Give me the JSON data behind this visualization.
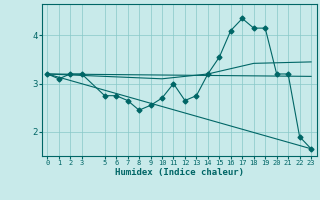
{
  "xlabel": "Humidex (Indice chaleur)",
  "background_color": "#c8eaea",
  "grid_color": "#88c8c8",
  "line_color": "#006666",
  "xlim": [
    -0.5,
    23.5
  ],
  "ylim": [
    1.5,
    4.65
  ],
  "yticks": [
    2,
    3,
    4
  ],
  "xticks": [
    0,
    1,
    2,
    3,
    5,
    6,
    7,
    8,
    9,
    10,
    11,
    12,
    13,
    14,
    15,
    16,
    17,
    18,
    19,
    20,
    21,
    22,
    23
  ],
  "line1_x": [
    0,
    1,
    2,
    3,
    5,
    6,
    7,
    8,
    9,
    10,
    11,
    12,
    13,
    14,
    15,
    16,
    17,
    18,
    19,
    20,
    21,
    22,
    23
  ],
  "line1_y": [
    3.2,
    3.1,
    3.2,
    3.2,
    2.75,
    2.75,
    2.65,
    2.45,
    2.55,
    2.7,
    3.0,
    2.65,
    2.75,
    3.2,
    3.55,
    4.1,
    4.35,
    4.15,
    4.15,
    3.2,
    3.2,
    1.9,
    1.65
  ],
  "line2_x": [
    0,
    23
  ],
  "line2_y": [
    3.2,
    3.15
  ],
  "line3_x": [
    0,
    23
  ],
  "line3_y": [
    3.2,
    1.65
  ],
  "line4_x": [
    0,
    10,
    14,
    18,
    23
  ],
  "line4_y": [
    3.2,
    3.1,
    3.2,
    3.42,
    3.45
  ]
}
